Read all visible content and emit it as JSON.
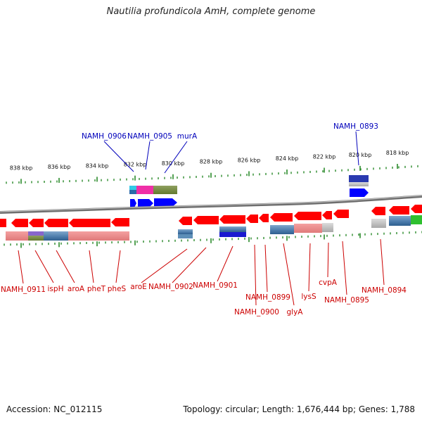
{
  "header": {
    "title": "Nautilia profundicola AmH, complete genome"
  },
  "footer": {
    "accession": "Accession: NC_012115",
    "summary": "Topology: circular; Length: 1,676,444 bp; Genes: 1,788"
  },
  "colors": {
    "forward": "#0000ff",
    "reverse": "#ff0000",
    "label_forward": "#0000bb",
    "label_reverse": "#cc0000",
    "tick": "#2a8a2a",
    "backbone": "#808080"
  },
  "ruler": {
    "upper_labels": [
      "838 kbp",
      "836 kbp",
      "834 kbp",
      "832 kbp",
      "830 kbp",
      "828 kbp",
      "826 kbp",
      "824 kbp",
      "822 kbp",
      "820 kbp",
      "818 kbp"
    ],
    "lower_label_count": 0
  },
  "genes": {
    "forward": [
      {
        "label": "NAMH_0906"
      },
      {
        "label": "NAMH_0905"
      },
      {
        "label": "murA"
      },
      {
        "label": "NAMH_0893"
      }
    ],
    "reverse": [
      {
        "label": "NAMH_0911"
      },
      {
        "label": "ispH"
      },
      {
        "label": "aroA"
      },
      {
        "label": "pheT"
      },
      {
        "label": "pheS"
      },
      {
        "label": "aroE"
      },
      {
        "label": "NAMH_0902"
      },
      {
        "label": "NAMH_0901"
      },
      {
        "label": "NAMH_0899"
      },
      {
        "label": "NAMH_0900"
      },
      {
        "label": "glyA"
      },
      {
        "label": "lysS"
      },
      {
        "label": "cvpA"
      },
      {
        "label": "NAMH_0895"
      },
      {
        "label": "NAMH_0894"
      }
    ]
  }
}
